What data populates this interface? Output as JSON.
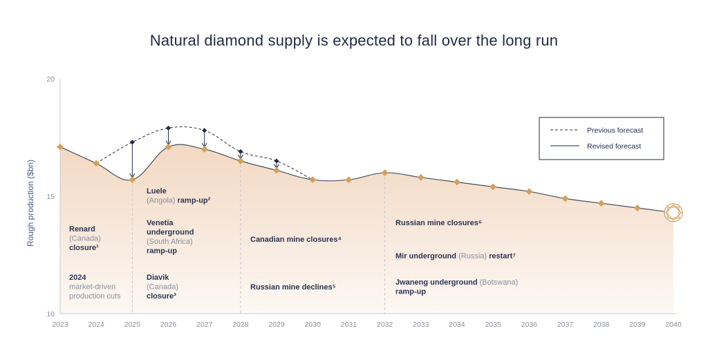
{
  "chart_data": {
    "type": "area",
    "title": "Natural diamond supply is expected to fall over the long run",
    "ylabel": "Rough production ($bn)",
    "xlabel": "",
    "ylim": [
      10,
      20
    ],
    "yticks": [
      10,
      15,
      20
    ],
    "x": [
      2023,
      2024,
      2025,
      2026,
      2027,
      2028,
      2029,
      2030,
      2031,
      2032,
      2033,
      2034,
      2035,
      2036,
      2037,
      2038,
      2039,
      2040
    ],
    "series": [
      {
        "name": "Revised forecast",
        "style": "solid",
        "values": [
          17.1,
          16.4,
          15.7,
          17.1,
          17.0,
          16.5,
          16.1,
          15.7,
          15.7,
          16.0,
          15.8,
          15.6,
          15.4,
          15.2,
          14.9,
          14.7,
          14.5,
          14.3
        ]
      },
      {
        "name": "Previous forecast",
        "style": "dashed",
        "x": [
          2024,
          2025,
          2026,
          2027,
          2028,
          2029,
          2030
        ],
        "values": [
          16.4,
          17.3,
          17.9,
          17.8,
          16.9,
          16.5,
          15.7
        ]
      }
    ],
    "vertical_markers": [
      2025,
      2028,
      2032
    ],
    "legend_position": "top-right",
    "annotations": [
      {
        "lines": [
          [
            "Renard",
            "b"
          ],
          [
            "(Canada)",
            "l"
          ],
          [
            "closure¹",
            "b"
          ]
        ]
      },
      {
        "lines": [
          [
            "2024",
            "b"
          ],
          [
            "market-driven",
            "l"
          ],
          [
            "production cuts",
            "l"
          ]
        ]
      },
      {
        "lines": [
          [
            "Luele",
            "b"
          ],
          [
            [
              "(Angola) ",
              "l"
            ],
            [
              "ramp-up²",
              "b"
            ]
          ]
        ]
      },
      {
        "lines": [
          [
            "Venetia",
            "b"
          ],
          [
            "underground",
            "b"
          ],
          [
            "(South Africa)",
            "l"
          ],
          [
            "ramp-up",
            "b"
          ]
        ]
      },
      {
        "lines": [
          [
            "Diavik",
            "b"
          ],
          [
            "(Canada)",
            "l"
          ],
          [
            "closure³",
            "b"
          ]
        ]
      },
      {
        "lines": [
          [
            "Canadian mine closures⁴",
            "b"
          ]
        ]
      },
      {
        "lines": [
          [
            "Russian mine declines⁵",
            "b"
          ]
        ]
      },
      {
        "lines": [
          [
            "Russian mine closures⁶",
            "b"
          ]
        ]
      },
      {
        "lines": [
          [
            [
              "Mir underground ",
              "b"
            ],
            [
              "(Russia) ",
              "l"
            ],
            [
              "restart⁷",
              "b"
            ]
          ]
        ]
      },
      {
        "lines": [
          [
            [
              "Jwaneng underground ",
              "b"
            ],
            [
              "(Botswana)",
              "l"
            ]
          ],
          [
            "ramp-up",
            "b"
          ]
        ]
      }
    ],
    "colors": {
      "line": "#1f2a44",
      "marker": "#d4a15c",
      "area_top": "#f2d8c2",
      "area_bottom": "#fdf7f2",
      "axis": "#c9c9cf"
    }
  }
}
